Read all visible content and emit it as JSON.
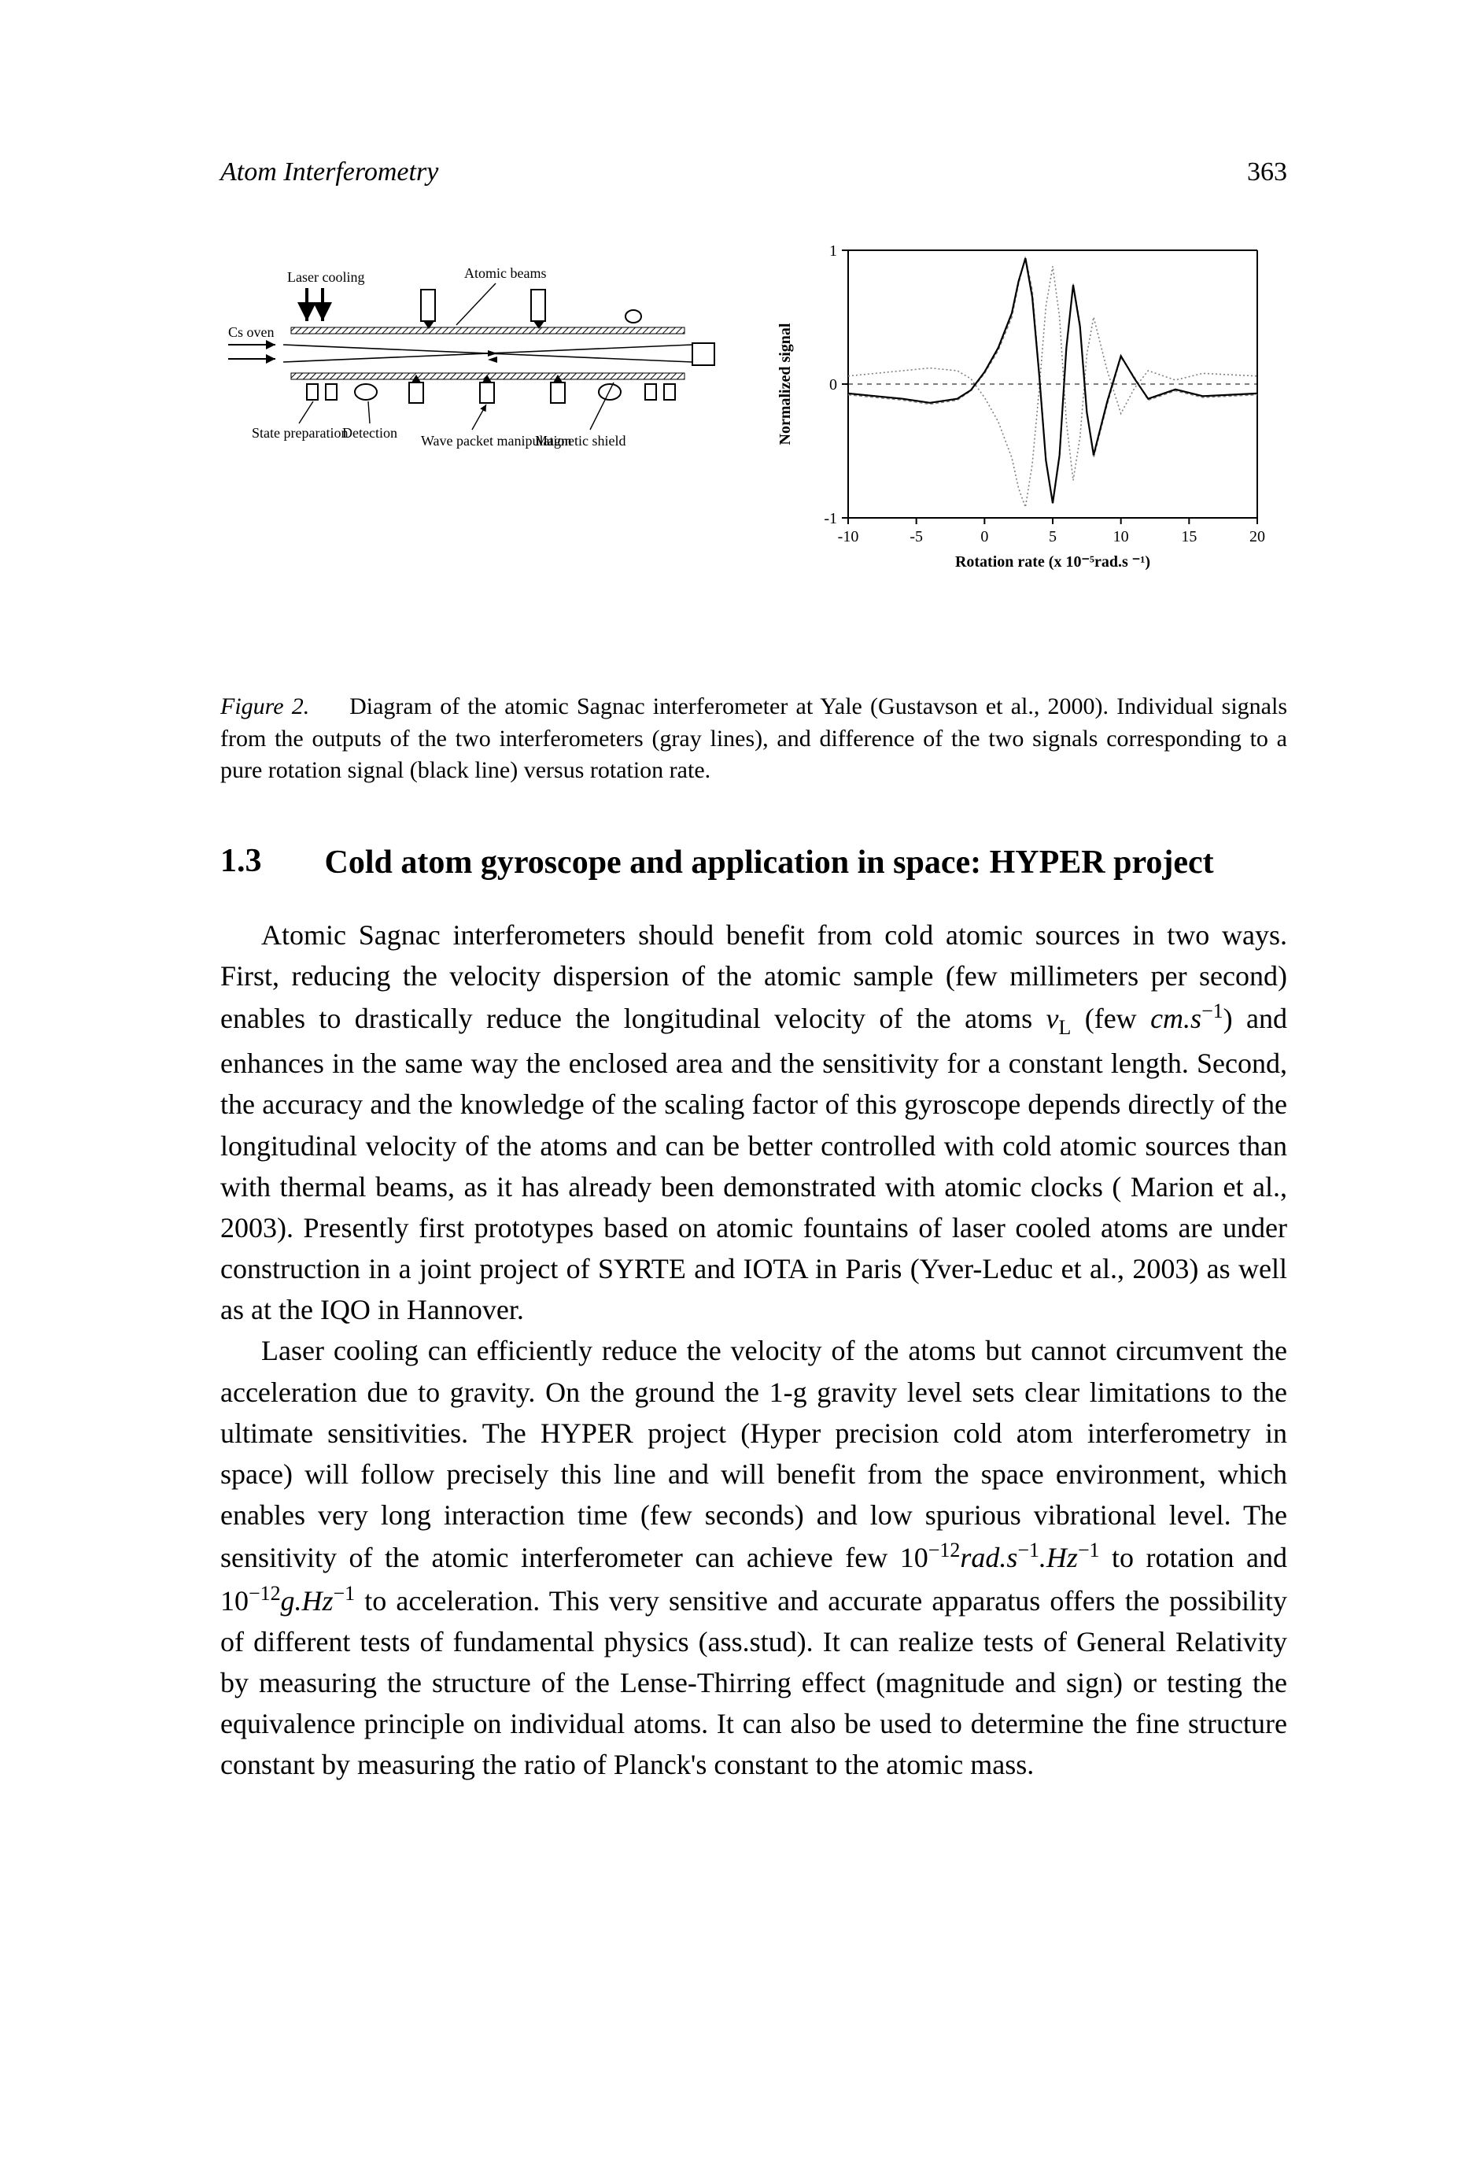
{
  "header": {
    "running_title": "Atom Interferometry",
    "page_number": "363"
  },
  "figure": {
    "diagram": {
      "labels": {
        "laser_cooling": "Laser cooling",
        "atomic_beams": "Atomic beams",
        "cs_oven": "Cs oven",
        "state_prep": "State preparation",
        "detection": "Detection",
        "wave_packet": "Wave packet manipulation",
        "magnetic_shield": "Magnetic shield"
      },
      "colors": {
        "stroke": "#000000",
        "fill_light": "#ffffff",
        "fill_gray": "#bdbdbd",
        "hatch": "#000000"
      },
      "beam_line_width": 1.6
    },
    "chart": {
      "type": "line",
      "ylabel": "Normalized signal",
      "xlabel": "Rotation rate (x 10⁻⁵rad.s ⁻¹)",
      "xlim": [
        -10,
        20
      ],
      "ylim": [
        -1,
        1
      ],
      "xticks": [
        -10,
        -5,
        0,
        5,
        10,
        15,
        20
      ],
      "yticks": [
        -1,
        0,
        1
      ],
      "axis_color": "#000000",
      "axis_width": 2,
      "tick_fontsize": 20,
      "label_fontsize": 20,
      "series": [
        {
          "name": "interferometer_1",
          "color": "#808080",
          "dash": "4 3",
          "width": 1.6,
          "x": [
            -10,
            -8,
            -6,
            -4,
            -2,
            -1,
            0,
            1,
            2,
            2.5,
            3,
            3.5,
            4,
            4.5,
            5,
            5.5,
            6,
            6.5,
            7,
            7.5,
            8,
            9,
            10,
            11,
            12,
            14,
            16,
            18,
            20
          ],
          "y": [
            -0.08,
            -0.1,
            -0.12,
            -0.15,
            -0.12,
            -0.05,
            0.08,
            0.25,
            0.5,
            0.75,
            0.95,
            0.7,
            0.1,
            -0.55,
            -0.9,
            -0.55,
            0.25,
            0.75,
            0.45,
            -0.2,
            -0.55,
            -0.15,
            0.2,
            0.05,
            -0.12,
            -0.05,
            -0.1,
            -0.09,
            -0.08
          ]
        },
        {
          "name": "interferometer_2",
          "color": "#808080",
          "dash": "2 3",
          "width": 1.6,
          "x": [
            -10,
            -8,
            -6,
            -4,
            -2,
            -1,
            0,
            1,
            2,
            2.5,
            3,
            3.5,
            4,
            4.5,
            5,
            5.5,
            6,
            6.5,
            7,
            7.5,
            8,
            9,
            10,
            11,
            12,
            14,
            16,
            18,
            20
          ],
          "y": [
            0.06,
            0.08,
            0.1,
            0.12,
            0.1,
            0.04,
            -0.1,
            -0.28,
            -0.55,
            -0.78,
            -0.92,
            -0.6,
            -0.05,
            0.58,
            0.88,
            0.5,
            -0.28,
            -0.72,
            -0.4,
            0.22,
            0.5,
            0.1,
            -0.22,
            -0.03,
            0.1,
            0.03,
            0.08,
            0.07,
            0.06
          ]
        },
        {
          "name": "difference",
          "color": "#000000",
          "dash": "",
          "width": 2.2,
          "x": [
            -10,
            -8,
            -6,
            -4,
            -2,
            -1,
            0,
            1,
            2,
            2.5,
            3,
            3.5,
            4,
            4.5,
            5,
            5.5,
            6,
            6.5,
            7,
            7.5,
            8,
            9,
            10,
            11,
            12,
            14,
            16,
            18,
            20
          ],
          "y": [
            -0.07,
            -0.09,
            -0.11,
            -0.14,
            -0.11,
            -0.045,
            0.09,
            0.27,
            0.53,
            0.77,
            0.94,
            0.65,
            0.08,
            -0.57,
            -0.89,
            -0.53,
            0.27,
            0.74,
            0.43,
            -0.21,
            -0.53,
            -0.13,
            0.21,
            0.04,
            -0.11,
            -0.04,
            -0.09,
            -0.08,
            -0.07
          ]
        }
      ]
    },
    "caption_label": "Figure 2.",
    "caption_text": "Diagram of the atomic Sagnac interferometer at Yale (Gustavson et al., 2000). Individual signals from the outputs of the two interferometers (gray lines), and difference of the two signals corresponding to a pure rotation signal (black line) versus rotation rate."
  },
  "section": {
    "number": "1.3",
    "title": "Cold atom gyroscope and application in space: HYPER project"
  },
  "paragraphs": {
    "p1_a": "Atomic Sagnac interferometers should benefit from cold atomic sources in two ways. First, reducing the velocity dispersion of the atomic sample (few millimeters per second) enables to drastically reduce the longitudinal velocity of the atoms ",
    "p1_vL": "v",
    "p1_L": "L",
    "p1_b": " (few ",
    "p1_unit1": "cm.s",
    "p1_exp1": "−1",
    "p1_c": ") and enhances in the same way the enclosed area and the sensitivity for a constant length. Second, the accuracy and the knowledge of the scaling factor of this gyroscope depends directly of the longitudinal velocity of the atoms and can be better controlled with cold atomic sources than with thermal beams, as it has already been demonstrated with atomic clocks  ( Marion et al., 2003). Presently first prototypes based on atomic fountains of laser cooled atoms are under construction in a joint project of SYRTE and IOTA in Paris  (Yver-Leduc et al., 2003) as well as at the IQO in Hannover.",
    "p2_a": "Laser cooling can efficiently reduce the velocity of the atoms but cannot circumvent the acceleration due to gravity. On the ground the 1-g gravity level sets clear limitations to the ultimate sensitivities. The HYPER project (Hyper precision cold atom interferometry in space) will follow precisely this line and will benefit from the space environment, which enables very long interaction time (few seconds) and low spurious vibrational level. The sensitivity of the atomic interferometer can achieve few ",
    "p2_ten1": "10",
    "p2_exp2": "−12",
    "p2_unit2a": "rad.s",
    "p2_exp3": "−1",
    "p2_unit2b": ".Hz",
    "p2_exp4": "−1",
    "p2_b": " to rotation and ",
    "p2_ten2": "10",
    "p2_exp5": "−12",
    "p2_unit3a": "g.Hz",
    "p2_exp6": "−1",
    "p2_c": " to acceleration. This very sensitive and accurate apparatus offers the possibility of different tests of fundamental physics (ass.stud). It can realize tests of General Relativity by measuring the structure of the Lense-Thirring effect (magnitude and sign) or testing the equivalence principle on individual atoms. It can also be used to determine the fine structure constant by measuring the ratio of Planck's constant to the atomic mass."
  }
}
